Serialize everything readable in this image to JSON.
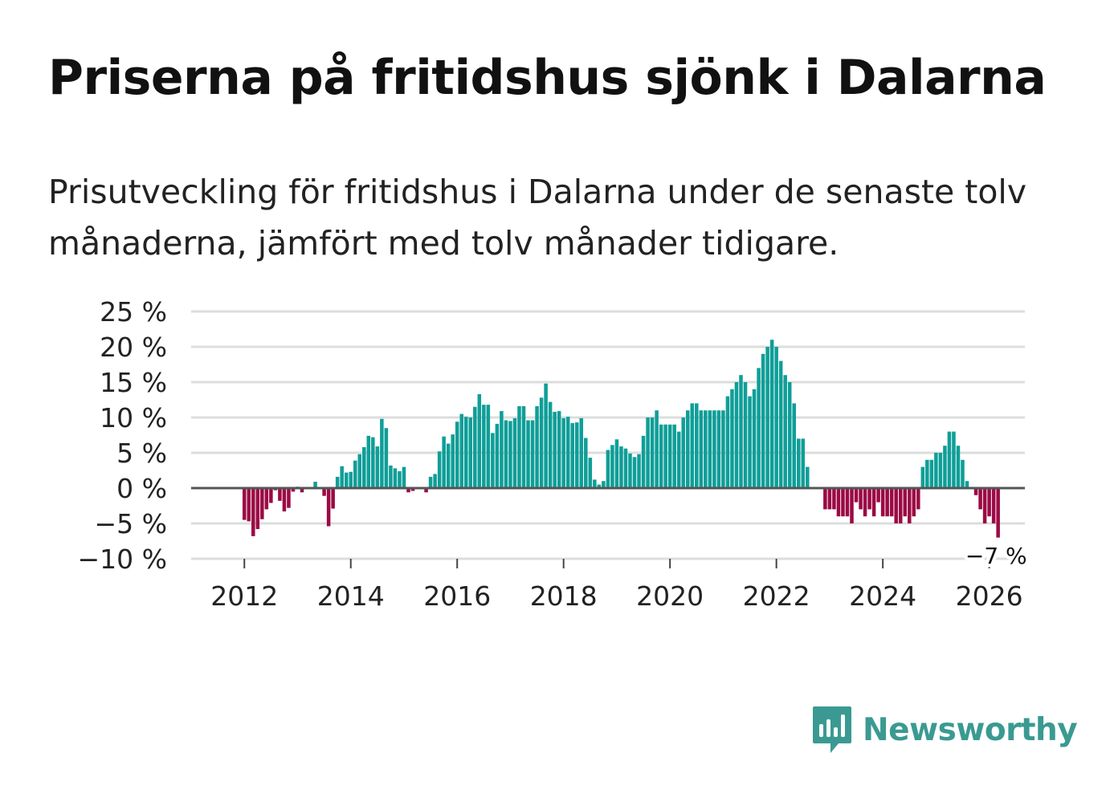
{
  "header": {
    "title": "Priserna på fritidshus sjönk i Dalarna",
    "subtitle": "Prisutveckling för fritidshus i Dalarna under de senaste tolv månaderna, jämfört med tolv månader tidigare."
  },
  "brand": {
    "name": "Newsworthy",
    "icon": "newsworthy-logo-icon",
    "color": "#3a9a92"
  },
  "colors": {
    "positive": "#0f9e98",
    "negative": "#9b0a45",
    "grid": "#dddddd",
    "zero_line": "#555555"
  },
  "chart_data": {
    "type": "bar",
    "title": "Priserna på fritidshus sjönk i Dalarna",
    "xlabel": "",
    "ylabel": "",
    "ylim": [
      -10,
      25
    ],
    "xlim": [
      2011.0,
      2026.67
    ],
    "y_ticks": [
      {
        "value": 25,
        "label": "25 %"
      },
      {
        "value": 20,
        "label": "20 %"
      },
      {
        "value": 15,
        "label": "15 %"
      },
      {
        "value": 10,
        "label": "10 %"
      },
      {
        "value": 5,
        "label": "5 %"
      },
      {
        "value": 0,
        "label": "0 %"
      },
      {
        "value": -5,
        "label": "−5 %"
      },
      {
        "value": -10,
        "label": "−10 %"
      }
    ],
    "x_ticks": [
      {
        "value": 2012,
        "label": "2012"
      },
      {
        "value": 2014,
        "label": "2014"
      },
      {
        "value": 2016,
        "label": "2016"
      },
      {
        "value": 2018,
        "label": "2018"
      },
      {
        "value": 2020,
        "label": "2020"
      },
      {
        "value": 2022,
        "label": "2022"
      },
      {
        "value": 2024,
        "label": "2024"
      },
      {
        "value": 2026,
        "label": "2026"
      }
    ],
    "start": "2012-01",
    "frequency": "monthly",
    "values": [
      -4.5,
      -4.7,
      -6.8,
      -5.8,
      -4.4,
      -3.0,
      -2.1,
      -0.3,
      -1.8,
      -3.3,
      -2.8,
      -0.5,
      0.2,
      -0.6,
      0.1,
      0.0,
      0.9,
      0.0,
      -1.1,
      -5.4,
      -2.9,
      1.6,
      3.1,
      2.2,
      2.3,
      3.9,
      4.8,
      5.8,
      7.4,
      7.2,
      5.9,
      9.8,
      8.5,
      3.2,
      2.8,
      2.4,
      3.0,
      -0.6,
      -0.4,
      0.0,
      0.0,
      -0.6,
      1.6,
      2.0,
      5.2,
      7.3,
      6.3,
      7.6,
      9.4,
      10.5,
      10.1,
      10.0,
      11.5,
      13.3,
      11.8,
      11.8,
      7.8,
      9.1,
      10.9,
      9.6,
      9.5,
      9.9,
      11.6,
      11.6,
      9.6,
      9.6,
      11.6,
      12.8,
      14.8,
      12.2,
      10.8,
      10.9,
      9.9,
      10.1,
      9.2,
      9.3,
      9.9,
      7.1,
      4.3,
      1.2,
      0.5,
      1.0,
      5.4,
      6.1,
      6.9,
      5.9,
      5.6,
      4.9,
      4.4,
      4.8,
      7.4,
      10.0,
      10.0,
      11.0,
      9.0,
      9.0,
      9.0,
      9.0,
      8.0,
      10.0,
      11.0,
      12.0,
      12.0,
      11.0,
      11.0,
      11.0,
      11.0,
      11.0,
      11.0,
      13.0,
      14.0,
      15.0,
      16.0,
      15.0,
      13.0,
      14.0,
      17.0,
      19.0,
      20.0,
      21.0,
      20.0,
      18.0,
      16.0,
      15.0,
      12.0,
      7.0,
      7.0,
      3.0,
      0.0,
      0.0,
      0.0,
      -3.0,
      -3.0,
      -3.0,
      -4.0,
      -4.0,
      -4.0,
      -5.0,
      -2.0,
      -3.0,
      -4.0,
      -3.0,
      -4.0,
      -2.0,
      -4.0,
      -4.0,
      -4.0,
      -5.0,
      -5.0,
      -4.0,
      -5.0,
      -4.0,
      -3.0,
      3.0,
      4.0,
      4.0,
      5.0,
      5.0,
      6.0,
      8.0,
      8.0,
      6.0,
      4.0,
      1.0,
      0.0,
      -1.0,
      -3.0,
      -5.0,
      -4.0,
      -5.0,
      -7.0
    ],
    "annotations": [
      {
        "text": "−7 %",
        "target": "last"
      }
    ]
  }
}
